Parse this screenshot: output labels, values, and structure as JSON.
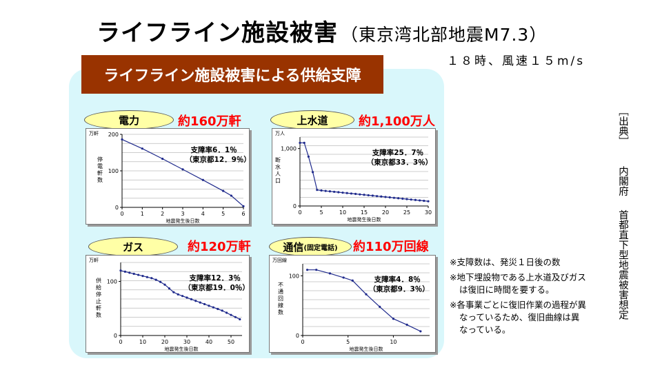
{
  "title": {
    "main": "ライフライン施設被害",
    "sub": "（東京湾北部地震M7.3）"
  },
  "conditions": "１８時、風速１５m/s",
  "banner": "ライフライン施設被害による供給支障",
  "notes": [
    "※支障数は、発災１日後の数",
    "※地下埋設物である上水道及びガスは復旧に時間を要する。",
    "※各事業ごとに復旧作業の過程が異なっているため、復旧曲線は異なっている。"
  ],
  "source": {
    "label": "［出典］",
    "org": "内閣府",
    "doc": "首都直下型地震被害想定"
  },
  "panels": {
    "electric": {
      "label": "電力",
      "big": "約160万軒"
    },
    "water": {
      "label": "上水道",
      "big": "約1,100万人"
    },
    "gas": {
      "label": "ガス",
      "big": "約120万軒"
    },
    "telecom": {
      "label": "通信",
      "label_small": "(固定電話)",
      "big": "約110万回線"
    }
  },
  "colors": {
    "banner": "#993300",
    "panel": "#d9f7fb",
    "pill": "#ffffa6",
    "big_text": "#ff0000",
    "line": "#1f2a8c"
  },
  "chart_data": [
    {
      "type": "line",
      "title": "電力",
      "unit": "万軒",
      "ylabel": "停電軒数",
      "xlabel": "地震発生後日数",
      "xlim": [
        0,
        6
      ],
      "ylim": [
        0,
        200
      ],
      "xticks": [
        0,
        1,
        2,
        3,
        4,
        5,
        6
      ],
      "yticks": [
        0,
        100,
        200
      ],
      "ytick_labels": [
        "0",
        "100",
        "200"
      ],
      "annotation": [
        "支障率6．1％",
        "（東京都12．9％）"
      ],
      "grid": true,
      "x": [
        0,
        1,
        2,
        3,
        4,
        5,
        5.4,
        6
      ],
      "y": [
        186,
        161,
        133,
        104,
        75,
        45,
        32,
        3
      ]
    },
    {
      "type": "line",
      "title": "上水道",
      "unit": "万人",
      "ylabel": "断水人口",
      "xlabel": "地震発生後日数",
      "xlim": [
        0,
        30
      ],
      "ylim": [
        0,
        1200
      ],
      "xticks": [
        0,
        5,
        10,
        15,
        20,
        25,
        30
      ],
      "yticks": [
        0,
        1000
      ],
      "ytick_labels": [
        "0",
        "1,000"
      ],
      "annotation": [
        "支障率25．7％",
        "（東京都33．3％）"
      ],
      "grid": true,
      "x": [
        0,
        1,
        2,
        3,
        4,
        5,
        6,
        7,
        8,
        9,
        10,
        11,
        12,
        13,
        14,
        15,
        16,
        17,
        18,
        19,
        20,
        21,
        22,
        23,
        24,
        25,
        26,
        27,
        28,
        29,
        30
      ],
      "y": [
        1100,
        1100,
        860,
        590,
        280,
        270,
        262,
        255,
        247,
        240,
        232,
        225,
        217,
        210,
        202,
        195,
        187,
        180,
        172,
        165,
        157,
        150,
        142,
        135,
        127,
        120,
        112,
        105,
        97,
        90,
        82
      ]
    },
    {
      "type": "line",
      "title": "ガス",
      "unit": "万軒",
      "ylabel": "供給停止軒数",
      "xlabel": "地震発生後日数",
      "xlim": [
        0,
        55
      ],
      "ylim": [
        0,
        135
      ],
      "xticks": [
        0,
        10,
        20,
        30,
        40,
        50
      ],
      "yticks": [
        0,
        100
      ],
      "ytick_labels": [
        "0",
        "100"
      ],
      "annotation": [
        "支障率12．3％",
        "（東京都19．0％）"
      ],
      "grid": true,
      "x": [
        0,
        2,
        4,
        6,
        8,
        10,
        12,
        14,
        16,
        18,
        20,
        22,
        24,
        26,
        28,
        30,
        32,
        34,
        36,
        38,
        40,
        42,
        44,
        46,
        48,
        50,
        52,
        54
      ],
      "y": [
        120,
        118,
        116,
        114,
        112,
        110,
        108,
        106,
        103,
        99,
        94,
        87,
        80,
        76,
        73,
        70,
        67,
        64,
        61,
        58,
        55,
        52,
        49,
        46,
        42,
        38,
        34,
        30
      ]
    },
    {
      "type": "line",
      "title": "通信（固定電話）",
      "unit": "万回線",
      "ylabel": "不通回線数",
      "xlabel": "地震発生後日数",
      "xlim": [
        0,
        14
      ],
      "ylim": [
        0,
        120
      ],
      "xticks": [
        0,
        5,
        10
      ],
      "yticks": [
        0,
        100
      ],
      "ytick_labels": [
        "0",
        "100"
      ],
      "annotation": [
        "支障率4．8％",
        "（東京都9．3％）"
      ],
      "grid": true,
      "x": [
        0.5,
        1.5,
        3,
        4.5,
        5.5,
        7,
        8.5,
        10,
        11.5,
        13
      ],
      "y": [
        110,
        110,
        104,
        97,
        92,
        69,
        48,
        28,
        18,
        7
      ]
    }
  ]
}
